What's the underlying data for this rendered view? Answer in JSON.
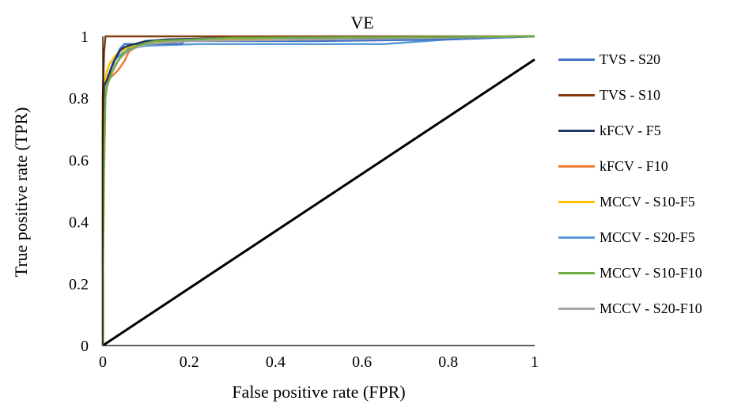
{
  "chart_data": {
    "type": "line",
    "title": "VE",
    "xlabel": "False positive rate (FPR)",
    "ylabel": "True positive rate (TPR)",
    "xlim": [
      0,
      1
    ],
    "ylim": [
      0,
      1
    ],
    "x_ticks": [
      "0",
      "0.2",
      "0.4",
      "0.6",
      "0.8",
      "1"
    ],
    "y_ticks": [
      "0",
      "0.2",
      "0.4",
      "0.6",
      "0.8",
      "1"
    ],
    "legend_position": "right",
    "series": [
      {
        "name": "TVS - S20",
        "color": "#4472c4",
        "points": [
          [
            0,
            0
          ],
          [
            0,
            0.62
          ],
          [
            0.004,
            0.81
          ],
          [
            0.01,
            0.86
          ],
          [
            0.02,
            0.9
          ],
          [
            0.03,
            0.93
          ],
          [
            0.04,
            0.96
          ],
          [
            0.05,
            0.975
          ],
          [
            0.1,
            0.975
          ],
          [
            0.18,
            0.975
          ],
          [
            0.19,
            0.985
          ],
          [
            0.25,
            0.985
          ],
          [
            0.5,
            0.985
          ],
          [
            0.8,
            0.99
          ],
          [
            1,
            1
          ]
        ]
      },
      {
        "name": "TVS - S10",
        "color": "#843c0c",
        "points": [
          [
            0,
            0
          ],
          [
            0,
            0.8
          ],
          [
            0.003,
            0.95
          ],
          [
            0.006,
            1
          ],
          [
            1,
            1
          ]
        ]
      },
      {
        "name": "kFCV - F5",
        "color": "#203864",
        "points": [
          [
            0,
            0
          ],
          [
            0,
            0.72
          ],
          [
            0.003,
            0.84
          ],
          [
            0.01,
            0.86
          ],
          [
            0.02,
            0.9
          ],
          [
            0.03,
            0.93
          ],
          [
            0.04,
            0.955
          ],
          [
            0.05,
            0.965
          ],
          [
            0.06,
            0.97
          ],
          [
            0.1,
            0.985
          ],
          [
            0.15,
            0.99
          ],
          [
            0.3,
            0.995
          ],
          [
            1,
            1
          ]
        ]
      },
      {
        "name": "kFCV - F10",
        "color": "#ed7d31",
        "points": [
          [
            0,
            0
          ],
          [
            0,
            0.66
          ],
          [
            0.005,
            0.81
          ],
          [
            0.01,
            0.85
          ],
          [
            0.02,
            0.87
          ],
          [
            0.035,
            0.89
          ],
          [
            0.05,
            0.92
          ],
          [
            0.06,
            0.95
          ],
          [
            0.08,
            0.97
          ],
          [
            0.12,
            0.985
          ],
          [
            0.3,
            0.995
          ],
          [
            1,
            1
          ]
        ]
      },
      {
        "name": "MCCV - S10-F5",
        "color": "#ffc000",
        "points": [
          [
            0,
            0
          ],
          [
            0,
            0.5
          ],
          [
            0.003,
            0.83
          ],
          [
            0.008,
            0.88
          ],
          [
            0.015,
            0.91
          ],
          [
            0.03,
            0.94
          ],
          [
            0.05,
            0.96
          ],
          [
            0.08,
            0.975
          ],
          [
            0.15,
            0.985
          ],
          [
            0.4,
            0.995
          ],
          [
            1,
            1
          ]
        ]
      },
      {
        "name": "MCCV - S20-F5",
        "color": "#5b9bd5",
        "points": [
          [
            0,
            0
          ],
          [
            0,
            0.74
          ],
          [
            0.005,
            0.81
          ],
          [
            0.012,
            0.87
          ],
          [
            0.025,
            0.92
          ],
          [
            0.04,
            0.94
          ],
          [
            0.06,
            0.96
          ],
          [
            0.1,
            0.97
          ],
          [
            0.22,
            0.975
          ],
          [
            0.65,
            0.975
          ],
          [
            0.8,
            0.99
          ],
          [
            1,
            1
          ]
        ]
      },
      {
        "name": "MCCV - S10-F10",
        "color": "#70ad47",
        "points": [
          [
            0,
            0
          ],
          [
            0,
            0.2
          ],
          [
            0.003,
            0.57
          ],
          [
            0.006,
            0.8
          ],
          [
            0.01,
            0.84
          ],
          [
            0.02,
            0.88
          ],
          [
            0.035,
            0.92
          ],
          [
            0.05,
            0.95
          ],
          [
            0.08,
            0.97
          ],
          [
            0.12,
            0.985
          ],
          [
            0.3,
            0.995
          ],
          [
            1,
            1
          ]
        ]
      },
      {
        "name": "MCCV - S20-F10",
        "color": "#a5a5a5",
        "points": [
          [
            0,
            0
          ],
          [
            0,
            0.5
          ],
          [
            0.004,
            0.82
          ],
          [
            0.01,
            0.86
          ],
          [
            0.02,
            0.89
          ],
          [
            0.04,
            0.93
          ],
          [
            0.06,
            0.955
          ],
          [
            0.1,
            0.975
          ],
          [
            0.2,
            0.985
          ],
          [
            0.5,
            0.99
          ],
          [
            1,
            1
          ]
        ]
      }
    ],
    "reference_line": {
      "color": "#000000",
      "points": [
        [
          0,
          0
        ],
        [
          1,
          0.925
        ]
      ]
    }
  }
}
